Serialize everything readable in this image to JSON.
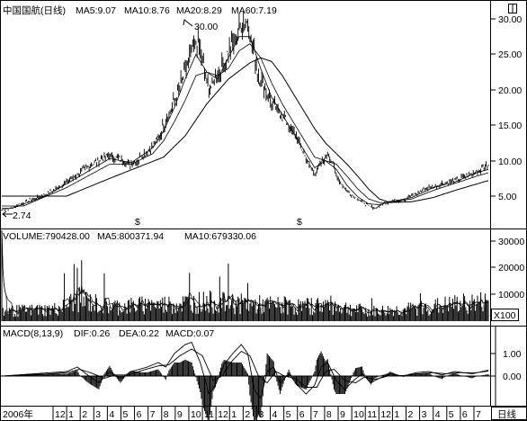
{
  "chart_data": {
    "type": "line",
    "title": "中国国航(日线)",
    "period_label": "日线",
    "year_label": "2006年",
    "month_ticks": [
      "12",
      "1",
      "2",
      "3",
      "4",
      "5",
      "6",
      "7",
      "8",
      "9",
      "10",
      "11",
      "12",
      "1",
      "2",
      "3",
      "4",
      "5",
      "6",
      "7",
      "8",
      "9",
      "10",
      "11",
      "12",
      "1",
      "2",
      "3",
      "4",
      "5",
      "6",
      "7"
    ],
    "price_panel": {
      "indicators": [
        {
          "name": "MA5",
          "value": "9.07",
          "text": "MA5:9.07"
        },
        {
          "name": "MA10",
          "value": "8.76",
          "text": "MA10:8.76"
        },
        {
          "name": "MA20",
          "value": "8.29",
          "text": "MA20:8.29"
        },
        {
          "name": "MA60",
          "value": "7.19",
          "text": "MA60:7.19"
        }
      ],
      "y_ticks": [
        "30.00",
        "25.00",
        "20.00",
        "15.00",
        "10.00",
        "5.00"
      ],
      "ylim": [
        2.0,
        31.5
      ],
      "annotations": {
        "high": "30.00",
        "low": "2.74"
      },
      "close_anchors": [
        [
          0,
          3.0
        ],
        [
          10,
          3.4
        ],
        [
          20,
          4.0
        ],
        [
          30,
          4.6
        ],
        [
          40,
          5.2
        ],
        [
          50,
          6.0
        ],
        [
          60,
          7.0
        ],
        [
          70,
          8.0
        ],
        [
          80,
          9.2
        ],
        [
          90,
          10.0
        ],
        [
          100,
          10.8
        ],
        [
          110,
          10.2
        ],
        [
          118,
          9.4
        ],
        [
          126,
          10.0
        ],
        [
          134,
          11.2
        ],
        [
          140,
          12.0
        ],
        [
          146,
          13.5
        ],
        [
          150,
          15.0
        ],
        [
          156,
          17.0
        ],
        [
          162,
          19.0
        ],
        [
          166,
          21.0
        ],
        [
          170,
          22.5
        ],
        [
          176,
          25.5
        ],
        [
          182,
          27.0
        ],
        [
          186,
          24.0
        ],
        [
          190,
          21.0
        ],
        [
          194,
          20.5
        ],
        [
          200,
          22.0
        ],
        [
          206,
          23.5
        ],
        [
          210,
          25.5
        ],
        [
          216,
          27.0
        ],
        [
          222,
          29.0
        ],
        [
          226,
          30.0
        ],
        [
          230,
          28.0
        ],
        [
          234,
          25.0
        ],
        [
          238,
          22.0
        ],
        [
          244,
          20.0
        ],
        [
          250,
          18.0
        ],
        [
          256,
          17.0
        ],
        [
          262,
          16.0
        ],
        [
          268,
          14.5
        ],
        [
          274,
          13.0
        ],
        [
          280,
          11.0
        ],
        [
          286,
          9.0
        ],
        [
          290,
          8.2
        ],
        [
          294,
          9.0
        ],
        [
          298,
          10.0
        ],
        [
          302,
          11.0
        ],
        [
          306,
          10.0
        ],
        [
          310,
          8.0
        ],
        [
          316,
          6.5
        ],
        [
          322,
          5.5
        ],
        [
          328,
          4.8
        ],
        [
          334,
          4.2
        ],
        [
          340,
          3.6
        ],
        [
          346,
          3.3
        ],
        [
          350,
          3.6
        ],
        [
          356,
          4.0
        ],
        [
          362,
          4.4
        ],
        [
          368,
          4.4
        ],
        [
          374,
          4.6
        ],
        [
          380,
          5.0
        ],
        [
          386,
          5.5
        ],
        [
          392,
          6.0
        ],
        [
          398,
          6.3
        ],
        [
          404,
          6.5
        ],
        [
          410,
          6.8
        ],
        [
          416,
          7.0
        ],
        [
          422,
          7.3
        ],
        [
          428,
          7.6
        ],
        [
          434,
          8.0
        ],
        [
          440,
          8.5
        ],
        [
          445,
          9.0
        ],
        [
          449,
          9.3
        ],
        [
          451,
          9.07
        ]
      ],
      "ma_anchors": {
        "ma10": [
          [
            10,
            3.3
          ],
          [
            40,
            5.0
          ],
          [
            70,
            7.6
          ],
          [
            100,
            10.3
          ],
          [
            120,
            9.7
          ],
          [
            140,
            11.8
          ],
          [
            150,
            14.2
          ],
          [
            160,
            17.5
          ],
          [
            170,
            21.5
          ],
          [
            180,
            25.0
          ],
          [
            190,
            22.5
          ],
          [
            200,
            21.5
          ],
          [
            210,
            24.5
          ],
          [
            220,
            27.5
          ],
          [
            230,
            27.5
          ],
          [
            240,
            23.0
          ],
          [
            250,
            19.0
          ],
          [
            260,
            16.5
          ],
          [
            270,
            14.0
          ],
          [
            280,
            11.5
          ],
          [
            290,
            9.0
          ],
          [
            300,
            10.0
          ],
          [
            310,
            8.8
          ],
          [
            320,
            6.5
          ],
          [
            330,
            4.9
          ],
          [
            340,
            3.9
          ],
          [
            350,
            3.8
          ],
          [
            360,
            4.2
          ],
          [
            380,
            4.8
          ],
          [
            400,
            6.2
          ],
          [
            420,
            7.0
          ],
          [
            440,
            8.3
          ],
          [
            451,
            8.76
          ]
        ],
        "ma20": [
          [
            20,
            3.6
          ],
          [
            60,
            6.2
          ],
          [
            100,
            9.5
          ],
          [
            120,
            9.5
          ],
          [
            140,
            11.0
          ],
          [
            150,
            12.8
          ],
          [
            160,
            15.5
          ],
          [
            170,
            18.5
          ],
          [
            180,
            22.0
          ],
          [
            190,
            22.5
          ],
          [
            200,
            22.0
          ],
          [
            210,
            23.0
          ],
          [
            220,
            25.5
          ],
          [
            230,
            26.5
          ],
          [
            240,
            24.5
          ],
          [
            250,
            21.0
          ],
          [
            260,
            18.0
          ],
          [
            270,
            15.5
          ],
          [
            280,
            13.0
          ],
          [
            290,
            10.5
          ],
          [
            300,
            10.0
          ],
          [
            310,
            9.5
          ],
          [
            320,
            7.8
          ],
          [
            330,
            6.0
          ],
          [
            340,
            4.6
          ],
          [
            350,
            4.1
          ],
          [
            360,
            4.1
          ],
          [
            380,
            4.6
          ],
          [
            400,
            5.8
          ],
          [
            420,
            6.8
          ],
          [
            440,
            7.8
          ],
          [
            451,
            8.29
          ]
        ],
        "ma60": [
          [
            60,
            5.0
          ],
          [
            100,
            7.5
          ],
          [
            130,
            9.3
          ],
          [
            150,
            10.5
          ],
          [
            170,
            13.5
          ],
          [
            190,
            18.0
          ],
          [
            210,
            21.5
          ],
          [
            230,
            23.8
          ],
          [
            240,
            24.5
          ],
          [
            250,
            24.0
          ],
          [
            260,
            22.0
          ],
          [
            270,
            19.5
          ],
          [
            280,
            17.0
          ],
          [
            290,
            14.5
          ],
          [
            300,
            12.5
          ],
          [
            310,
            11.0
          ],
          [
            320,
            9.5
          ],
          [
            330,
            7.8
          ],
          [
            340,
            6.0
          ],
          [
            350,
            4.6
          ],
          [
            360,
            4.1
          ],
          [
            380,
            4.2
          ],
          [
            400,
            4.8
          ],
          [
            420,
            5.8
          ],
          [
            440,
            6.7
          ],
          [
            451,
            7.19
          ]
        ]
      }
    },
    "volume_panel": {
      "indicators": [
        {
          "name": "VOLUME",
          "value": "790428.00",
          "text": "VOLUME:790428.00"
        },
        {
          "name": "MA5",
          "value": "800371.94",
          "text": "MA5:800371.94"
        },
        {
          "name": "MA10",
          "value": "679330.06",
          "text": "MA10:679330.06"
        }
      ],
      "y_ticks": [
        "30000",
        "20000",
        "10000"
      ],
      "unit": "X100",
      "ylim": [
        0,
        34000
      ],
      "vol_anchors": [
        [
          0,
          4000
        ],
        [
          50,
          5000
        ],
        [
          70,
          9000
        ],
        [
          100,
          6000
        ],
        [
          150,
          7000
        ],
        [
          190,
          8000
        ],
        [
          230,
          7000
        ],
        [
          280,
          6000
        ],
        [
          300,
          7000
        ],
        [
          340,
          4000
        ],
        [
          380,
          5000
        ],
        [
          420,
          7000
        ],
        [
          451,
          8000
        ]
      ]
    },
    "macd_panel": {
      "params": "MACD(8,13,9)",
      "indicators": [
        {
          "name": "DIF",
          "value": "0.26",
          "text": "DIF:0.26"
        },
        {
          "name": "DEA",
          "value": "0.22",
          "text": "DEA:0.22"
        },
        {
          "name": "MACD",
          "value": "0.07",
          "text": "MACD:0.07"
        }
      ],
      "y_ticks": [
        "1.00",
        "0.00"
      ],
      "ylim": [
        -1.6,
        1.9
      ],
      "dif_anchors": [
        [
          0,
          0.0
        ],
        [
          30,
          0.1
        ],
        [
          60,
          0.2
        ],
        [
          70,
          0.4
        ],
        [
          78,
          0.1
        ],
        [
          90,
          -0.3
        ],
        [
          100,
          0.2
        ],
        [
          110,
          -0.1
        ],
        [
          120,
          0.2
        ],
        [
          135,
          0.4
        ],
        [
          145,
          0.6
        ],
        [
          152,
          0.4
        ],
        [
          160,
          1.0
        ],
        [
          170,
          1.4
        ],
        [
          176,
          1.5
        ],
        [
          184,
          0.6
        ],
        [
          192,
          -0.8
        ],
        [
          198,
          -0.4
        ],
        [
          206,
          0.5
        ],
        [
          214,
          1.0
        ],
        [
          222,
          1.4
        ],
        [
          228,
          1.0
        ],
        [
          234,
          -0.6
        ],
        [
          240,
          -1.0
        ],
        [
          246,
          0.2
        ],
        [
          252,
          0.4
        ],
        [
          258,
          -0.3
        ],
        [
          266,
          0.1
        ],
        [
          274,
          -0.4
        ],
        [
          282,
          -0.8
        ],
        [
          290,
          -0.4
        ],
        [
          296,
          0.4
        ],
        [
          302,
          0.6
        ],
        [
          310,
          -0.2
        ],
        [
          318,
          -0.6
        ],
        [
          326,
          -0.2
        ],
        [
          334,
          0.1
        ],
        [
          342,
          -0.3
        ],
        [
          350,
          -0.1
        ],
        [
          360,
          0.1
        ],
        [
          372,
          0.0
        ],
        [
          384,
          0.15
        ],
        [
          396,
          0.2
        ],
        [
          408,
          0.05
        ],
        [
          420,
          0.2
        ],
        [
          436,
          0.1
        ],
        [
          451,
          0.26
        ]
      ],
      "dea_anchors": [
        [
          0,
          0.0
        ],
        [
          30,
          0.05
        ],
        [
          60,
          0.15
        ],
        [
          72,
          0.3
        ],
        [
          82,
          0.15
        ],
        [
          95,
          -0.1
        ],
        [
          105,
          0.05
        ],
        [
          118,
          0.05
        ],
        [
          130,
          0.25
        ],
        [
          145,
          0.45
        ],
        [
          155,
          0.5
        ],
        [
          165,
          0.9
        ],
        [
          176,
          1.2
        ],
        [
          186,
          0.9
        ],
        [
          196,
          -0.2
        ],
        [
          204,
          0.0
        ],
        [
          214,
          0.7
        ],
        [
          222,
          1.1
        ],
        [
          230,
          0.9
        ],
        [
          238,
          0.0
        ],
        [
          246,
          -0.3
        ],
        [
          254,
          0.2
        ],
        [
          262,
          0.0
        ],
        [
          272,
          -0.1
        ],
        [
          282,
          -0.5
        ],
        [
          292,
          -0.5
        ],
        [
          300,
          0.2
        ],
        [
          308,
          0.3
        ],
        [
          318,
          -0.2
        ],
        [
          328,
          -0.3
        ],
        [
          336,
          -0.05
        ],
        [
          346,
          -0.15
        ],
        [
          358,
          0.0
        ],
        [
          372,
          0.02
        ],
        [
          386,
          0.1
        ],
        [
          400,
          0.15
        ],
        [
          412,
          0.1
        ],
        [
          424,
          0.15
        ],
        [
          440,
          0.15
        ],
        [
          451,
          0.22
        ]
      ]
    }
  }
}
